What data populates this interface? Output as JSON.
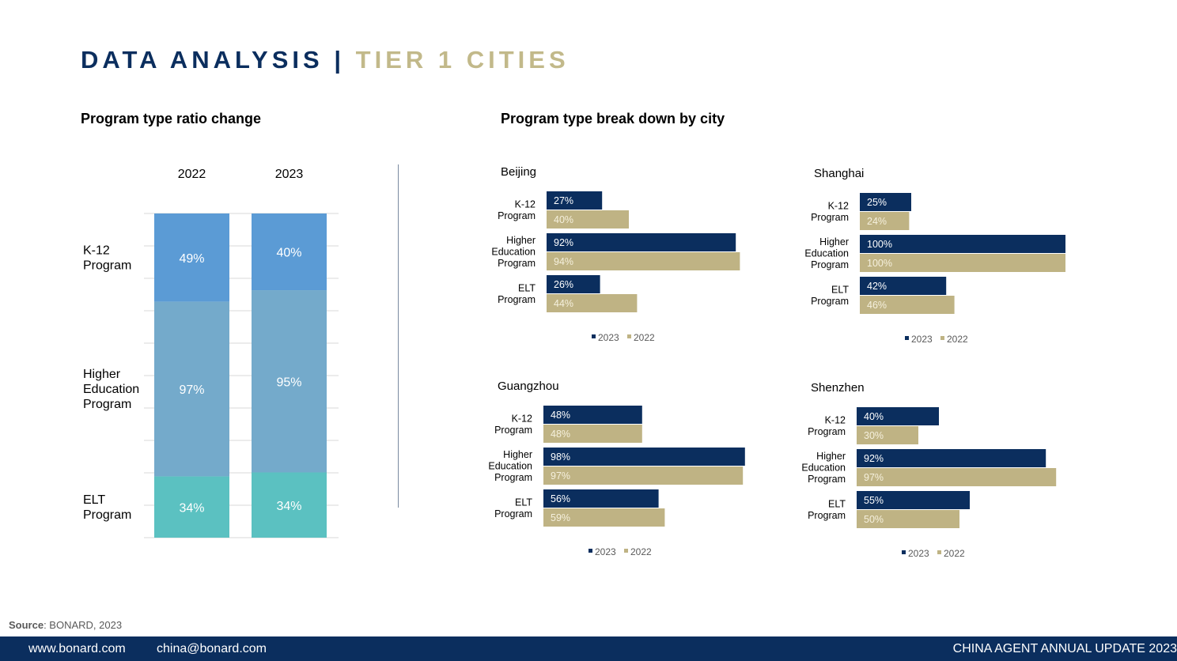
{
  "header": {
    "title_main": "DATA ANALYSIS",
    "title_sep": "|",
    "title_accent": "TIER 1 CITIES"
  },
  "left_section": {
    "title": "Program type ratio change"
  },
  "right_section": {
    "title": "Program type break down by city"
  },
  "colors": {
    "navy": "#0b2e5e",
    "gold": "#bfb384",
    "k12": "#5b9bd5",
    "higher_ed": "#74aacb",
    "elt": "#5bc1c1"
  },
  "chart_data": [
    {
      "type": "bar",
      "stacked": true,
      "categories": [
        "2022",
        "2023"
      ],
      "series": [
        {
          "name": "K-12 Program",
          "labels": [
            "49%",
            "40%"
          ],
          "values": [
            49,
            40
          ]
        },
        {
          "name": "Higher Education Program",
          "labels": [
            "97%",
            "95%"
          ],
          "values": [
            97,
            95
          ]
        },
        {
          "name": "ELT Program",
          "labels": [
            "34%",
            "34%"
          ],
          "values": [
            34,
            34
          ]
        }
      ],
      "gridlines": true
    },
    {
      "type": "bar",
      "orientation": "horizontal",
      "title": "Beijing",
      "categories": [
        "K-12\nProgram",
        "Higher\nEducation\nProgram",
        "ELT\nProgram"
      ],
      "series": [
        {
          "name": "2023",
          "values": [
            27,
            92,
            26
          ]
        },
        {
          "name": "2022",
          "values": [
            40,
            94,
            44
          ]
        }
      ],
      "xlim": [
        0,
        100
      ],
      "legend": "bottom"
    },
    {
      "type": "bar",
      "orientation": "horizontal",
      "title": "Shanghai",
      "categories": [
        "K-12\nProgram",
        "Higher\nEducation\nProgram",
        "ELT\nProgram"
      ],
      "series": [
        {
          "name": "2023",
          "values": [
            25,
            100,
            42
          ]
        },
        {
          "name": "2022",
          "values": [
            24,
            100,
            46
          ]
        }
      ],
      "xlim": [
        0,
        100
      ],
      "legend": "bottom"
    },
    {
      "type": "bar",
      "orientation": "horizontal",
      "title": "Guangzhou",
      "categories": [
        "K-12\nProgram",
        "Higher\nEducation\nProgram",
        "ELT\nProgram"
      ],
      "series": [
        {
          "name": "2023",
          "values": [
            48,
            98,
            56
          ]
        },
        {
          "name": "2022",
          "values": [
            48,
            97,
            59
          ]
        }
      ],
      "xlim": [
        0,
        100
      ],
      "legend": "bottom"
    },
    {
      "type": "bar",
      "orientation": "horizontal",
      "title": "Shenzhen",
      "categories": [
        "K-12\nProgram",
        "Higher\nEducation\nProgram",
        "ELT\nProgram"
      ],
      "series": [
        {
          "name": "2023",
          "values": [
            40,
            92,
            55
          ]
        },
        {
          "name": "2022",
          "values": [
            30,
            97,
            50
          ]
        }
      ],
      "xlim": [
        0,
        100
      ],
      "legend": "bottom"
    }
  ],
  "source": {
    "label": "Source",
    "text": ": BONARD, 2023"
  },
  "footer": {
    "website": "www.bonard.com",
    "email": "china@bonard.com",
    "report": "CHINA AGENT ANNUAL UPDATE 2023"
  }
}
